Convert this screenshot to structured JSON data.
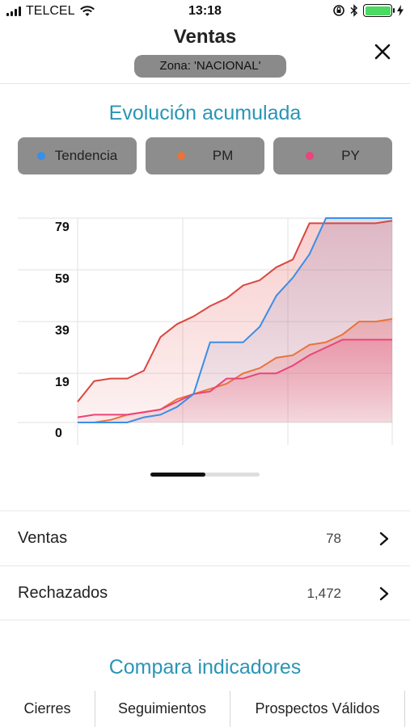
{
  "status_bar": {
    "carrier": "TELCEL",
    "time": "13:18"
  },
  "header": {
    "title": "Ventas",
    "zone": "Zona: 'NACIONAL'"
  },
  "chart_section": {
    "title": "Evolución acumulada",
    "legend": [
      {
        "label": "Tendencia",
        "color": "#3a8ee6"
      },
      {
        "label": "PM",
        "color": "#e8743b"
      },
      {
        "label": "PY",
        "color": "#e8457a"
      }
    ]
  },
  "chart_data": {
    "type": "area",
    "y_ticks": [
      "79",
      "59",
      "39",
      "19",
      "0"
    ],
    "ylim": [
      0,
      79
    ],
    "x": [
      1,
      2,
      3,
      4,
      5,
      6,
      7,
      8,
      9,
      10,
      11,
      12,
      13,
      14,
      15,
      16,
      17,
      18,
      19,
      20
    ],
    "series": [
      {
        "color": "#3a8ee6",
        "values": [
          0,
          0,
          0,
          0,
          2,
          3,
          6,
          11,
          31,
          31,
          31,
          37,
          49,
          56,
          65,
          79,
          79,
          79,
          79,
          79
        ]
      },
      {
        "color": "#d9473f",
        "values": [
          8,
          16,
          17,
          17,
          20,
          33,
          38,
          41,
          45,
          48,
          53,
          55,
          60,
          63,
          77,
          77,
          77,
          77,
          77,
          78
        ]
      },
      {
        "color": "#e8743b",
        "values": [
          0,
          0,
          1,
          3,
          4,
          5,
          9,
          11,
          13,
          15,
          19,
          21,
          25,
          26,
          30,
          31,
          34,
          39,
          39,
          40
        ]
      },
      {
        "color": "#e8457a",
        "values": [
          2,
          3,
          3,
          3,
          4,
          5,
          8,
          11,
          12,
          17,
          17,
          19,
          19,
          22,
          26,
          29,
          32,
          32,
          32,
          32
        ]
      }
    ],
    "grid": true
  },
  "rows": [
    {
      "label": "Ventas",
      "value": "78"
    },
    {
      "label": "Rechazados",
      "value": "1,472"
    }
  ],
  "compare": {
    "title": "Compara indicadores",
    "tabs": [
      "Cierres",
      "Seguimientos",
      "Prospectos Válidos"
    ]
  }
}
